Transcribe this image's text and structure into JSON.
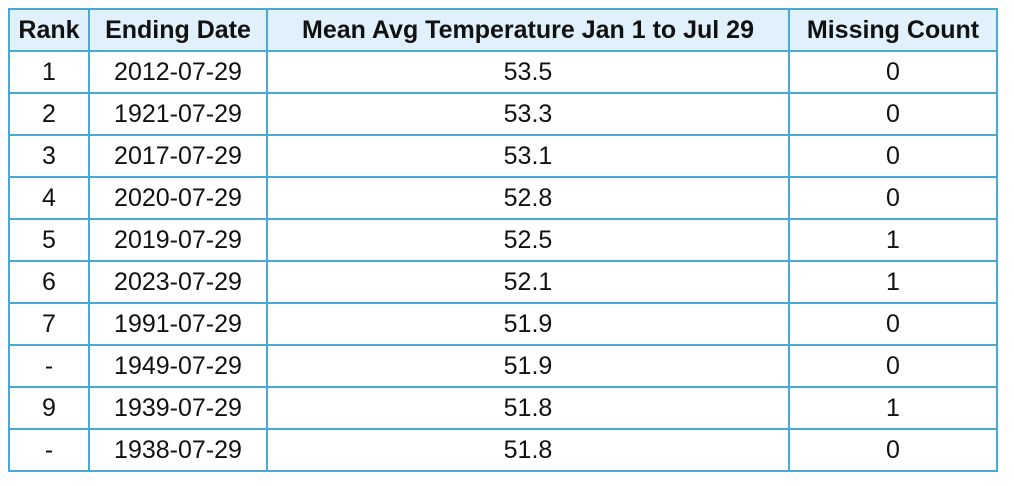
{
  "table": {
    "headers": [
      "Rank",
      "Ending Date",
      "Mean Avg Temperature Jan 1 to Jul 29",
      "Missing Count"
    ],
    "rows": [
      [
        "1",
        "2012-07-29",
        "53.5",
        "0"
      ],
      [
        "2",
        "1921-07-29",
        "53.3",
        "0"
      ],
      [
        "3",
        "2017-07-29",
        "53.1",
        "0"
      ],
      [
        "4",
        "2020-07-29",
        "52.8",
        "0"
      ],
      [
        "5",
        "2019-07-29",
        "52.5",
        "1"
      ],
      [
        "6",
        "2023-07-29",
        "52.1",
        "1"
      ],
      [
        "7",
        "1991-07-29",
        "51.9",
        "0"
      ],
      [
        "-",
        "1949-07-29",
        "51.9",
        "0"
      ],
      [
        "9",
        "1939-07-29",
        "51.8",
        "1"
      ],
      [
        "-",
        "1938-07-29",
        "51.8",
        "0"
      ]
    ]
  },
  "colors": {
    "header_bg": "#e1f1fb",
    "border": "#4aa8d8"
  }
}
